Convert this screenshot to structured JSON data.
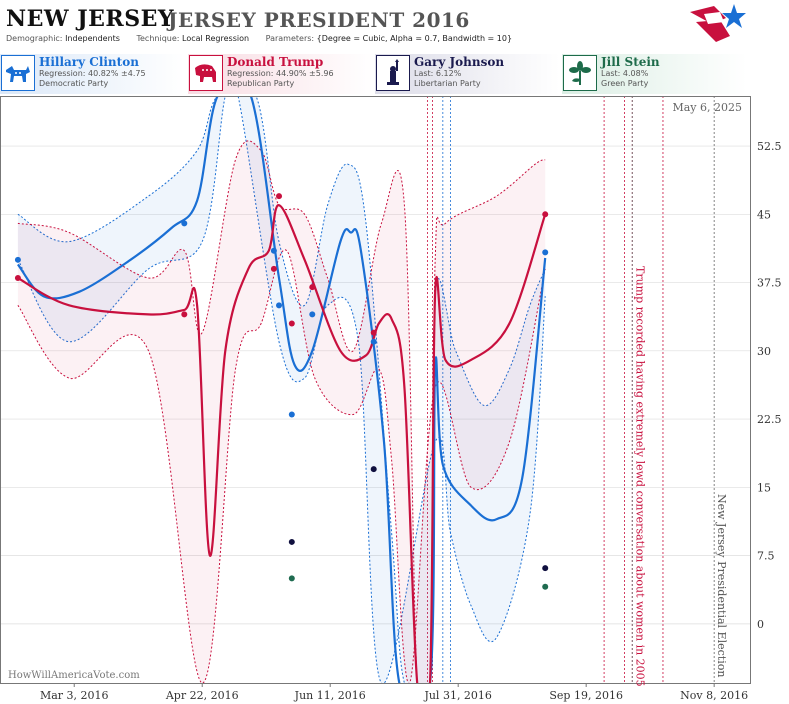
{
  "header": {
    "state": "NEW JERSEY",
    "race": "JERSEY PRESIDENT 2016",
    "demographic_label": "Demographic:",
    "demographic": "Independents",
    "technique_label": "Technique:",
    "technique": "Local Regression",
    "parameters_label": "Parameters:",
    "parameters": "{Degree = Cubic, Alpha = 0.7, Bandwidth = 10}"
  },
  "candidates": [
    {
      "name": "Hillary Clinton",
      "stat": "Regression: 40.82% ±4.75",
      "party": "Democratic Party",
      "color": "#1a6fd4",
      "icon": "donkey-icon"
    },
    {
      "name": "Donald Trump",
      "stat": "Regression: 44.90% ±5.96",
      "party": "Republican Party",
      "color": "#c8103e",
      "icon": "elephant-icon"
    },
    {
      "name": "Gary Johnson",
      "stat": "Last: 6.12%",
      "party": "Libertarian Party",
      "color": "#1a1a4e",
      "icon": "liberty-icon"
    },
    {
      "name": "Jill Stein",
      "stat": "Last: 4.08%",
      "party": "Green Party",
      "color": "#1d6b4a",
      "icon": "flower-icon"
    }
  ],
  "colors": {
    "clinton": "#1a6fd4",
    "trump": "#c8103e",
    "johnson": "#10103f",
    "stein": "#1f6b50",
    "grid": "#dddddd"
  },
  "chart_data": {
    "type": "line",
    "title": "JERSEY PRESIDENT 2016",
    "date_label": "May 6, 2025",
    "watermark": "HowWillAmericaVote.com",
    "x_ticks": [
      "Mar 3, 2016",
      "Apr 22, 2016",
      "Jun 11, 2016",
      "Jul 31, 2016",
      "Sep 19, 2016",
      "Nov 8, 2016"
    ],
    "x_range": [
      "2016-02-03",
      "2016-11-22"
    ],
    "y_ticks": [
      "0",
      "7.5",
      "15",
      "22.5",
      "30",
      "37.5",
      "45",
      "52.5"
    ],
    "ylim": [
      -6.5,
      58
    ],
    "annotations": [
      {
        "date": "2016-10-07",
        "text": "Trump recorded having extremely lewd conversation about women in 2005",
        "color": "#c8103e"
      },
      {
        "date": "2016-11-08",
        "text": "New Jersey Presidential Election",
        "color": "#555555"
      }
    ],
    "event_lines_red": [
      "2016-07-19",
      "2016-07-21",
      "2016-09-26",
      "2016-10-04",
      "2016-10-07",
      "2016-10-19"
    ],
    "event_lines_blue": [
      "2016-07-25",
      "2016-07-28"
    ],
    "series": [
      {
        "name": "Hillary Clinton",
        "points": [
          [
            "2016-02-10",
            40
          ],
          [
            "2016-04-15",
            44
          ],
          [
            "2016-05-20",
            41
          ],
          [
            "2016-05-22",
            35
          ],
          [
            "2016-05-27",
            23
          ],
          [
            "2016-06-04",
            34
          ],
          [
            "2016-06-28",
            31
          ],
          [
            "2016-09-03",
            40.82
          ]
        ],
        "trend": [
          [
            "2016-02-10",
            39.5
          ],
          [
            "2016-02-20",
            36
          ],
          [
            "2016-03-05",
            36.5
          ],
          [
            "2016-03-25",
            40
          ],
          [
            "2016-04-10",
            43.5
          ],
          [
            "2016-04-20",
            46.5
          ],
          [
            "2016-04-28",
            58
          ],
          [
            "2016-05-11",
            58
          ],
          [
            "2016-05-22",
            38
          ],
          [
            "2016-05-28",
            28.5
          ],
          [
            "2016-06-04",
            30
          ],
          [
            "2016-06-15",
            42
          ],
          [
            "2016-06-19",
            43
          ],
          [
            "2016-06-23",
            41
          ],
          [
            "2016-07-02",
            20
          ],
          [
            "2016-07-08",
            -6.5
          ],
          [
            "2016-07-20",
            -6.5
          ],
          [
            "2016-07-22",
            28.5
          ],
          [
            "2016-07-25",
            17.5
          ],
          [
            "2016-08-05",
            13
          ],
          [
            "2016-08-15",
            11.5
          ],
          [
            "2016-08-25",
            16
          ],
          [
            "2016-09-03",
            40.2
          ]
        ],
        "upper": [
          [
            "2016-02-10",
            45
          ],
          [
            "2016-03-01",
            42
          ],
          [
            "2016-04-01",
            47
          ],
          [
            "2016-04-20",
            52
          ],
          [
            "2016-04-28",
            58
          ],
          [
            "2016-05-13",
            58
          ],
          [
            "2016-05-22",
            42
          ],
          [
            "2016-06-01",
            35
          ],
          [
            "2016-06-10",
            46
          ],
          [
            "2016-06-18",
            50.5
          ],
          [
            "2016-06-25",
            44
          ],
          [
            "2016-07-05",
            10
          ],
          [
            "2016-07-10",
            -6.5
          ],
          [
            "2016-07-20",
            -6.5
          ],
          [
            "2016-07-22",
            36
          ],
          [
            "2016-07-30",
            30
          ],
          [
            "2016-08-10",
            24
          ],
          [
            "2016-08-20",
            28
          ],
          [
            "2016-08-28",
            35
          ],
          [
            "2016-09-03",
            39
          ]
        ],
        "lower": [
          [
            "2016-02-10",
            40
          ],
          [
            "2016-03-01",
            31
          ],
          [
            "2016-04-01",
            39
          ],
          [
            "2016-04-22",
            42
          ],
          [
            "2016-05-01",
            58
          ],
          [
            "2016-05-06",
            58
          ],
          [
            "2016-05-22",
            31
          ],
          [
            "2016-06-01",
            27
          ],
          [
            "2016-06-10",
            35
          ],
          [
            "2016-06-22",
            31
          ],
          [
            "2016-07-01",
            -6.5
          ],
          [
            "2016-07-22",
            20
          ],
          [
            "2016-07-28",
            10
          ],
          [
            "2016-08-05",
            2
          ],
          [
            "2016-08-15",
            -1.5
          ],
          [
            "2016-08-28",
            12
          ],
          [
            "2016-09-03",
            36
          ]
        ]
      },
      {
        "name": "Donald Trump",
        "points": [
          [
            "2016-02-10",
            38
          ],
          [
            "2016-04-15",
            34
          ],
          [
            "2016-05-20",
            39
          ],
          [
            "2016-05-22",
            47
          ],
          [
            "2016-05-27",
            33
          ],
          [
            "2016-06-04",
            37
          ],
          [
            "2016-06-28",
            32
          ],
          [
            "2016-09-03",
            45
          ]
        ],
        "trend": [
          [
            "2016-02-10",
            38
          ],
          [
            "2016-03-01",
            35
          ],
          [
            "2016-04-01",
            34
          ],
          [
            "2016-04-15",
            34.5
          ],
          [
            "2016-04-20",
            35
          ],
          [
            "2016-04-25",
            7.5
          ],
          [
            "2016-05-01",
            30
          ],
          [
            "2016-05-10",
            39
          ],
          [
            "2016-05-18",
            41
          ],
          [
            "2016-05-22",
            46
          ],
          [
            "2016-06-01",
            40
          ],
          [
            "2016-06-15",
            30
          ],
          [
            "2016-06-25",
            29.5
          ],
          [
            "2016-06-30",
            33
          ],
          [
            "2016-07-05",
            33.5
          ],
          [
            "2016-07-10",
            26
          ],
          [
            "2016-07-15",
            -6.5
          ],
          [
            "2016-07-20",
            -6.5
          ],
          [
            "2016-07-22",
            36.5
          ],
          [
            "2016-07-26",
            29
          ],
          [
            "2016-08-05",
            29
          ],
          [
            "2016-08-20",
            33
          ],
          [
            "2016-09-03",
            45
          ]
        ],
        "upper": [
          [
            "2016-02-10",
            44
          ],
          [
            "2016-03-01",
            43
          ],
          [
            "2016-04-01",
            38
          ],
          [
            "2016-04-15",
            41
          ],
          [
            "2016-04-22",
            32
          ],
          [
            "2016-05-05",
            51
          ],
          [
            "2016-05-15",
            52
          ],
          [
            "2016-05-22",
            46
          ],
          [
            "2016-06-01",
            45
          ],
          [
            "2016-06-10",
            38
          ],
          [
            "2016-06-20",
            30
          ],
          [
            "2016-07-01",
            44
          ],
          [
            "2016-07-10",
            46
          ],
          [
            "2016-07-15",
            -6.5
          ],
          [
            "2016-07-20",
            -6.5
          ],
          [
            "2016-07-22",
            40
          ],
          [
            "2016-07-26",
            44
          ],
          [
            "2016-08-15",
            47
          ],
          [
            "2016-08-30",
            50.5
          ],
          [
            "2016-09-03",
            51
          ]
        ],
        "lower": [
          [
            "2016-02-10",
            35
          ],
          [
            "2016-03-01",
            27
          ],
          [
            "2016-04-01",
            30
          ],
          [
            "2016-04-22",
            -6.5
          ],
          [
            "2016-05-05",
            28
          ],
          [
            "2016-05-15",
            33
          ],
          [
            "2016-05-25",
            41
          ],
          [
            "2016-06-05",
            27
          ],
          [
            "2016-06-20",
            23
          ],
          [
            "2016-06-30",
            28
          ],
          [
            "2016-07-05",
            18
          ],
          [
            "2016-07-12",
            -6.5
          ],
          [
            "2016-07-22",
            26
          ],
          [
            "2016-08-05",
            15
          ],
          [
            "2016-08-20",
            20
          ],
          [
            "2016-09-03",
            39
          ]
        ]
      },
      {
        "name": "Gary Johnson",
        "points": [
          [
            "2016-05-27",
            9
          ],
          [
            "2016-06-28",
            17
          ],
          [
            "2016-09-03",
            6.12
          ]
        ]
      },
      {
        "name": "Jill Stein",
        "points": [
          [
            "2016-05-27",
            5
          ],
          [
            "2016-09-03",
            4.08
          ]
        ]
      }
    ]
  }
}
